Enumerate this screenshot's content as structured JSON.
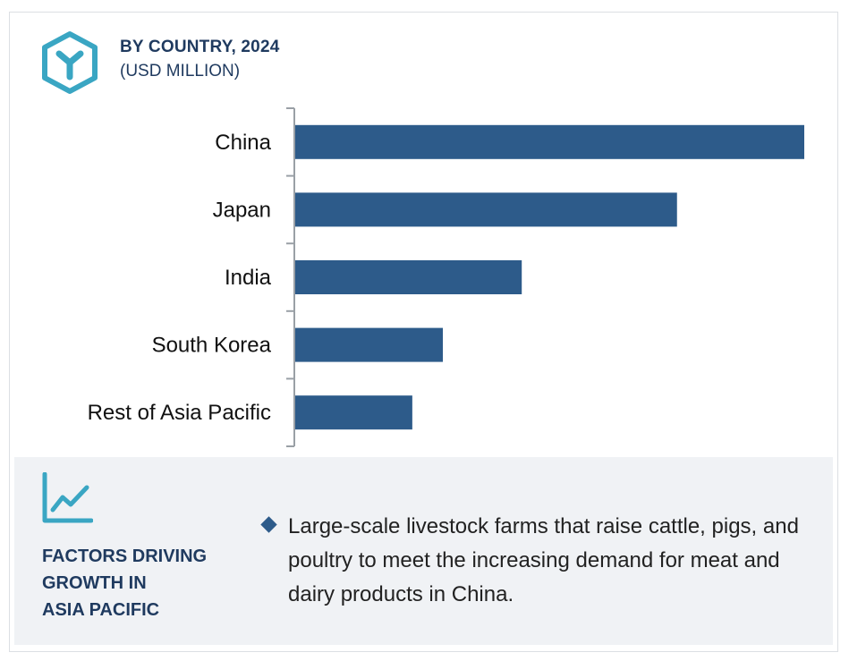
{
  "header": {
    "title": "BY COUNTRY, 2024",
    "subtitle": "(USD MILLION)",
    "logo_icon": "hexagon-y-logo-icon"
  },
  "chart_data": {
    "type": "bar",
    "orientation": "horizontal",
    "categories": [
      "China",
      "Japan",
      "India",
      "South Korea",
      "Rest of Asia Pacific"
    ],
    "values": [
      100,
      75,
      44.5,
      29,
      23
    ],
    "value_scale": "relative, no axis values shown",
    "xlim": [
      0,
      100
    ],
    "title": "",
    "xlabel": "",
    "ylabel": "",
    "grid": false,
    "bar_color": "#2d5b8a"
  },
  "factors": {
    "icon": "trend-line-chart-icon",
    "heading_lines": [
      "FACTORS DRIVING",
      "GROWTH IN",
      "ASIA PACIFIC"
    ],
    "bullets": [
      "Large-scale livestock farms that raise cattle, pigs, and poultry to meet the increasing demand for meat and dairy products in China."
    ]
  },
  "colors": {
    "accent_teal": "#3aa6c3",
    "heading_navy": "#1f3a5f",
    "bar": "#2d5b8a",
    "panel_bg": "#f0f2f5"
  }
}
